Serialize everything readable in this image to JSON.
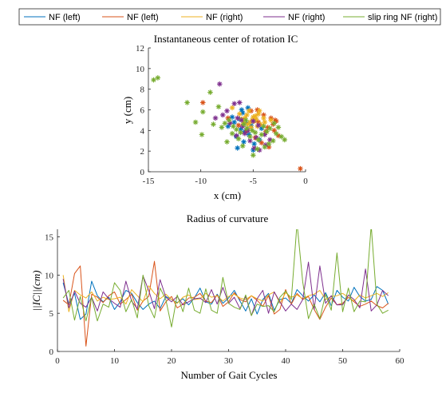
{
  "legend": {
    "placement": "top",
    "entries": [
      {
        "label": "NF (left)",
        "color": "#0072BD"
      },
      {
        "label": "NF (left)",
        "color": "#D95319"
      },
      {
        "label": "NF (right)",
        "color": "#EDB120"
      },
      {
        "label": "NF (right)",
        "color": "#7E2F8E"
      },
      {
        "label": "slip ring NF (right)",
        "color": "#77AC30"
      }
    ]
  },
  "chart_data": [
    {
      "type": "scatter",
      "title": "Instantaneous center of rotation IC",
      "xlabel": "x (cm)",
      "ylabel": "y (cm)",
      "xlim": [
        -15,
        0
      ],
      "ylim": [
        0,
        12
      ],
      "xticks": [
        -15,
        -10,
        -5,
        0
      ],
      "yticks": [
        0,
        2,
        4,
        6,
        8,
        10,
        12
      ],
      "grid": false,
      "marker": "asterisk",
      "series": [
        {
          "color": "#0072BD",
          "points": [
            [
              -6.5,
              2.3
            ],
            [
              -5.0,
              2.1
            ],
            [
              -6.8,
              4.8
            ],
            [
              -7.0,
              5.3
            ],
            [
              -6.2,
              4.1
            ],
            [
              -5.5,
              6.2
            ],
            [
              -6.0,
              5.7
            ],
            [
              -5.2,
              4.5
            ],
            [
              -4.4,
              3.1
            ],
            [
              -6.6,
              3.4
            ],
            [
              -5.8,
              3.9
            ],
            [
              -4.8,
              5.0
            ],
            [
              -7.4,
              4.4
            ],
            [
              -5.9,
              2.9
            ],
            [
              -4.2,
              4.2
            ],
            [
              -6.3,
              5.1
            ],
            [
              -5.4,
              3.6
            ],
            [
              -4.9,
              2.7
            ],
            [
              -6.1,
              6.0
            ],
            [
              -5.6,
              4.7
            ]
          ]
        },
        {
          "color": "#D95319",
          "points": [
            [
              -0.5,
              0.3
            ],
            [
              -9.8,
              6.7
            ],
            [
              -3.5,
              2.4
            ],
            [
              -3.1,
              4.6
            ],
            [
              -4.0,
              5.5
            ],
            [
              -2.8,
              4.9
            ],
            [
              -3.8,
              3.9
            ],
            [
              -4.5,
              4.8
            ],
            [
              -5.2,
              5.9
            ],
            [
              -3.3,
              5.2
            ],
            [
              -2.6,
              3.5
            ],
            [
              -4.8,
              3.3
            ],
            [
              -3.6,
              4.3
            ],
            [
              -7.4,
              5.2
            ],
            [
              -6.4,
              4.5
            ],
            [
              -3.0,
              4.0
            ],
            [
              -4.2,
              2.8
            ],
            [
              -2.9,
              5.0
            ],
            [
              -5.6,
              4.0
            ],
            [
              -4.6,
              6.0
            ]
          ]
        },
        {
          "color": "#EDB120",
          "points": [
            [
              -5.0,
              5.3
            ],
            [
              -4.7,
              5.1
            ],
            [
              -5.3,
              4.8
            ],
            [
              -4.9,
              4.9
            ],
            [
              -5.6,
              5.5
            ],
            [
              -4.5,
              5.6
            ],
            [
              -5.1,
              5.0
            ],
            [
              -4.3,
              4.6
            ],
            [
              -5.8,
              5.2
            ],
            [
              -4.6,
              4.4
            ],
            [
              -5.4,
              5.9
            ],
            [
              -4.0,
              5.2
            ],
            [
              -5.9,
              4.7
            ],
            [
              -6.3,
              5.6
            ],
            [
              -5.2,
              4.3
            ],
            [
              -4.4,
              5.9
            ],
            [
              -4.8,
              5.4
            ],
            [
              -5.5,
              4.6
            ],
            [
              -6.1,
              5.1
            ],
            [
              -3.9,
              4.8
            ],
            [
              -7.0,
              6.2
            ],
            [
              -3.3,
              5.0
            ]
          ]
        },
        {
          "color": "#7E2F8E",
          "points": [
            [
              -8.2,
              8.5
            ],
            [
              -7.5,
              5.9
            ],
            [
              -6.8,
              6.6
            ],
            [
              -6.5,
              5.2
            ],
            [
              -6.0,
              4.4
            ],
            [
              -5.8,
              3.7
            ],
            [
              -5.3,
              3.0
            ],
            [
              -4.9,
              2.3
            ],
            [
              -4.4,
              2.1
            ],
            [
              -3.9,
              3.6
            ],
            [
              -7.9,
              5.5
            ],
            [
              -6.3,
              6.7
            ],
            [
              -5.0,
              4.9
            ],
            [
              -4.7,
              3.3
            ],
            [
              -3.8,
              2.6
            ],
            [
              -7.2,
              4.7
            ],
            [
              -6.6,
              3.5
            ],
            [
              -5.5,
              4.0
            ],
            [
              -4.5,
              4.5
            ],
            [
              -3.4,
              3.1
            ],
            [
              -8.6,
              5.2
            ],
            [
              -6.1,
              5.0
            ]
          ]
        },
        {
          "color": "#77AC30",
          "points": [
            [
              -14.5,
              8.9
            ],
            [
              -14.1,
              9.1
            ],
            [
              -11.3,
              6.7
            ],
            [
              -9.9,
              3.6
            ],
            [
              -9.8,
              5.8
            ],
            [
              -9.1,
              7.7
            ],
            [
              -8.8,
              4.6
            ],
            [
              -8.3,
              6.3
            ],
            [
              -7.7,
              4.7
            ],
            [
              -7.5,
              2.9
            ],
            [
              -7.3,
              5.0
            ],
            [
              -6.9,
              4.4
            ],
            [
              -6.6,
              4.1
            ],
            [
              -6.2,
              3.8
            ],
            [
              -5.9,
              4.6
            ],
            [
              -5.6,
              4.2
            ],
            [
              -5.3,
              3.4
            ],
            [
              -5.1,
              4.0
            ],
            [
              -4.8,
              3.8
            ],
            [
              -4.5,
              3.1
            ],
            [
              -4.2,
              3.6
            ],
            [
              -3.9,
              2.4
            ],
            [
              -3.7,
              3.9
            ],
            [
              -3.4,
              4.2
            ],
            [
              -3.1,
              3.0
            ],
            [
              -2.8,
              3.7
            ],
            [
              -2.3,
              3.4
            ],
            [
              -2.0,
              3.1
            ],
            [
              -5.0,
              1.6
            ],
            [
              -4.6,
              2.2
            ],
            [
              -6.4,
              3.2
            ],
            [
              -7.0,
              3.7
            ],
            [
              -8.0,
              4.3
            ],
            [
              -3.0,
              4.7
            ],
            [
              -2.6,
              4.3
            ],
            [
              -4.0,
              4.4
            ],
            [
              -10.5,
              4.8
            ],
            [
              -6.0,
              2.5
            ],
            [
              -5.7,
              5.0
            ],
            [
              -3.5,
              2.7
            ]
          ]
        }
      ]
    },
    {
      "type": "line",
      "title": "Radius of curvature",
      "xlabel": "Number of Gait Cycles",
      "ylabel": "||IC||(cm)",
      "xlim": [
        0,
        60
      ],
      "ylim": [
        0,
        16
      ],
      "xticks": [
        0,
        10,
        20,
        30,
        40,
        50,
        60
      ],
      "yticks": [
        0,
        5,
        10,
        15
      ],
      "grid": false,
      "x": [
        1,
        2,
        3,
        4,
        5,
        6,
        7,
        8,
        9,
        10,
        11,
        12,
        13,
        14,
        15,
        16,
        17,
        18,
        19,
        20,
        21,
        22,
        23,
        24,
        25,
        26,
        27,
        28,
        29,
        30,
        31,
        32,
        33,
        34,
        35,
        36,
        37,
        38,
        39,
        40,
        41,
        42,
        43,
        44,
        45,
        46,
        47,
        48,
        49,
        50,
        51,
        52,
        53,
        54,
        55,
        56,
        57,
        58
      ],
      "series": [
        {
          "color": "#0072BD",
          "values": [
            9.0,
            6.2,
            7.6,
            4.2,
            4.9,
            9.2,
            7.3,
            6.5,
            7.1,
            5.5,
            6.5,
            8.0,
            7.6,
            6.4,
            5.5,
            6.2,
            6.6,
            5.6,
            7.2,
            6.8,
            6.4,
            6.9,
            6.1,
            7.0,
            8.3,
            6.5,
            6.2,
            7.5,
            6.3,
            7.0,
            8.0,
            6.6,
            5.3,
            6.9,
            4.9,
            6.8,
            7.6,
            5.4,
            6.8,
            7.0,
            6.3,
            8.1,
            7.3,
            6.6,
            7.4,
            6.5,
            7.7,
            6.0,
            8.0,
            7.1,
            6.6,
            8.4,
            7.2,
            6.6,
            6.8,
            8.5,
            8.0,
            6.2
          ]
        },
        {
          "color": "#D95319",
          "values": [
            6.7,
            6.1,
            10.2,
            11.2,
            0.7,
            7.5,
            7.1,
            6.4,
            7.3,
            7.8,
            6.2,
            6.8,
            7.5,
            5.4,
            6.6,
            7.2,
            11.8,
            5.3,
            6.5,
            7.2,
            5.7,
            6.2,
            7.0,
            7.1,
            7.6,
            6.6,
            6.4,
            7.4,
            5.9,
            6.5,
            7.7,
            6.8,
            6.5,
            7.3,
            6.7,
            5.9,
            7.3,
            4.9,
            5.5,
            8.1,
            6.2,
            7.6,
            6.8,
            7.2,
            5.5,
            4.2,
            5.8,
            7.0,
            6.1,
            6.3,
            7.1,
            6.5,
            5.9,
            6.2,
            6.6,
            6.0,
            5.7,
            6.3
          ]
        },
        {
          "color": "#EDB120",
          "values": [
            10.0,
            5.2,
            8.0,
            7.4,
            7.0,
            7.8,
            6.6,
            7.1,
            6.8,
            6.9,
            7.1,
            6.2,
            8.1,
            7.3,
            6.5,
            8.6,
            7.6,
            6.9,
            7.5,
            6.8,
            6.3,
            7.1,
            7.4,
            6.8,
            6.9,
            7.6,
            7.1,
            7.3,
            6.6,
            7.2,
            7.5,
            7.0,
            6.8,
            7.3,
            6.9,
            6.6,
            7.4,
            7.8,
            6.3,
            7.7,
            7.1,
            7.4,
            6.9,
            7.3,
            7.5,
            8.0,
            6.8,
            7.2,
            7.3,
            7.6,
            7.1,
            6.6,
            7.4,
            7.0,
            7.3,
            7.6,
            7.2,
            7.7
          ]
        },
        {
          "color": "#7E2F8E",
          "values": [
            9.5,
            5.7,
            7.9,
            6.3,
            5.8,
            7.1,
            5.3,
            7.8,
            6.9,
            6.3,
            5.8,
            9.2,
            6.6,
            5.6,
            9.9,
            8.0,
            5.6,
            9.4,
            7.1,
            6.5,
            7.2,
            6.1,
            6.5,
            6.9,
            7.0,
            6.4,
            8.1,
            6.2,
            8.4,
            6.3,
            7.1,
            5.6,
            7.2,
            4.7,
            6.9,
            8.0,
            5.0,
            7.8,
            6.5,
            5.3,
            6.2,
            5.5,
            6.8,
            11.7,
            5.5,
            11.2,
            6.3,
            7.3,
            6.1,
            6.1,
            7.4,
            6.8,
            5.7,
            10.8,
            5.3,
            6.1,
            8.0,
            7.3
          ]
        },
        {
          "color": "#77AC30",
          "values": [
            7.0,
            8.0,
            4.1,
            7.2,
            4.0,
            7.1,
            4.0,
            6.2,
            5.8,
            9.0,
            8.0,
            5.2,
            6.8,
            4.4,
            10.0,
            6.0,
            4.4,
            8.3,
            6.8,
            3.2,
            7.4,
            5.2,
            8.3,
            5.4,
            5.0,
            8.2,
            5.4,
            5.0,
            9.7,
            6.3,
            5.8,
            5.5,
            7.4,
            4.7,
            6.2,
            5.9,
            6.0,
            5.2,
            7.1,
            7.9,
            6.8,
            16.8,
            9.1,
            4.3,
            6.2,
            4.3,
            7.5,
            5.4,
            12.9,
            5.2,
            8.3,
            5.2,
            6.6,
            6.5,
            16.5,
            6.2,
            5.0,
            5.4
          ]
        }
      ]
    }
  ]
}
